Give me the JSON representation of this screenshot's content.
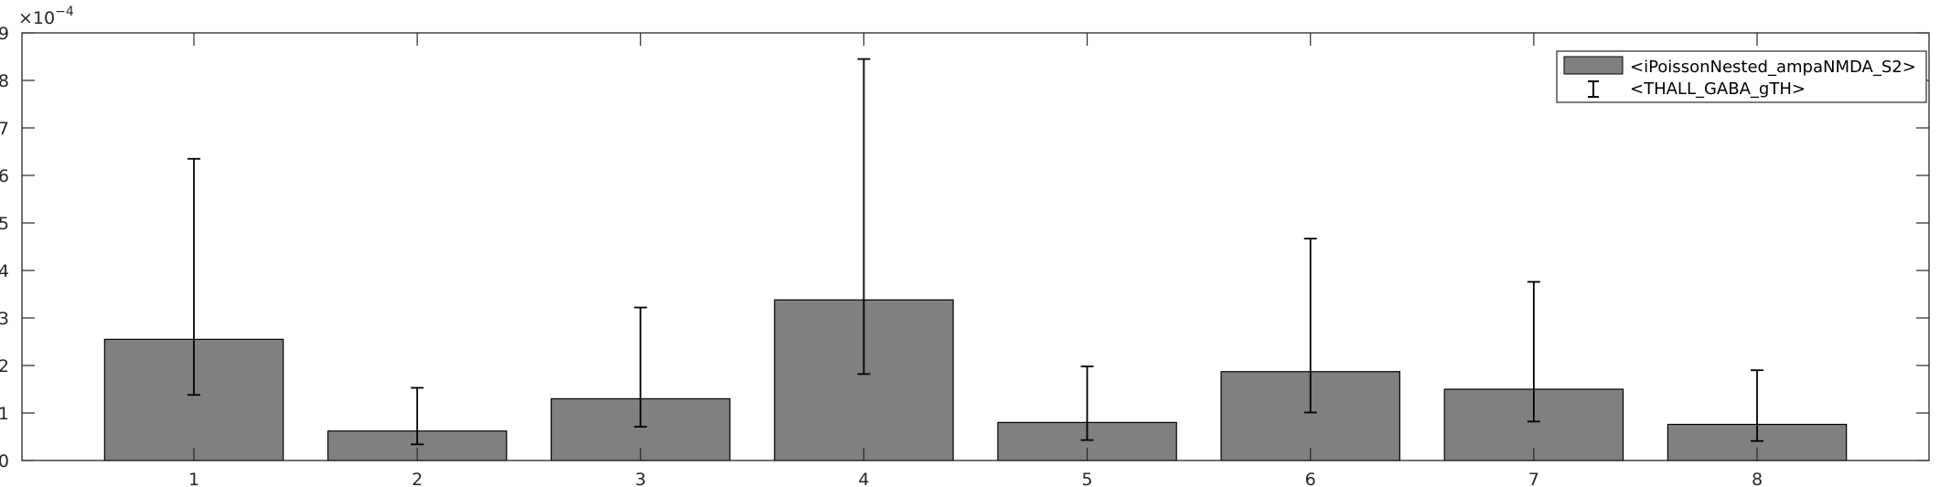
{
  "chart_data": {
    "type": "bar",
    "categories": [
      "1",
      "2",
      "3",
      "4",
      "5",
      "6",
      "7",
      "8"
    ],
    "series": [
      {
        "name": "<iPoissonNested_ampaNMDA_S2>",
        "values": [
          0.000255,
          6.2e-05,
          0.00013,
          0.000338,
          8e-05,
          0.000187,
          0.00015,
          7.6e-05
        ]
      }
    ],
    "error_bars": {
      "name": "<THALL_GABA_gTH>",
      "lower": [
        0.000138,
        3.4e-05,
        7.1e-05,
        0.000182,
        4.3e-05,
        0.000101,
        8.2e-05,
        4.1e-05
      ],
      "upper": [
        0.000635,
        0.000153,
        0.000322,
        0.000845,
        0.000198,
        0.000467,
        0.000376,
        0.00019
      ]
    },
    "ylim": [
      0,
      0.0009
    ],
    "yticks": [
      0,
      1,
      2,
      3,
      4,
      5,
      6,
      7,
      8,
      9
    ],
    "y_multiplier_base": "×10",
    "y_multiplier_exp": "−4",
    "xlim": [
      0.23,
      8.77
    ],
    "bar_color": "#808080",
    "legend_position": "top-right",
    "grid": false,
    "title": "",
    "xlabel": "",
    "ylabel": ""
  }
}
